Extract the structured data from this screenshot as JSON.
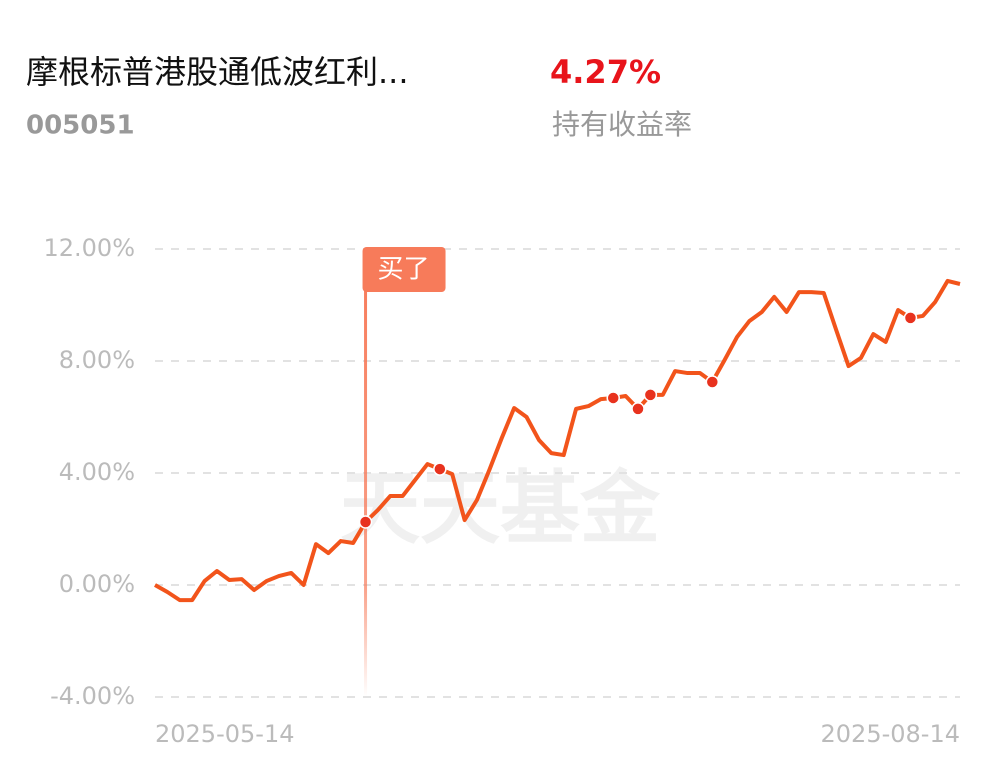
{
  "header": {
    "title": "摩根标普港股通低波红利...",
    "code": "005051",
    "return_value": "4.27%",
    "return_label": "持有收益率"
  },
  "watermark": "天天基金",
  "chart_data": {
    "type": "line",
    "categories": [
      "2025-05-14",
      null,
      null,
      null,
      null,
      null,
      null,
      null,
      null,
      null,
      null,
      null,
      null,
      null,
      null,
      null,
      null,
      null,
      null,
      null,
      null,
      null,
      null,
      null,
      null,
      null,
      null,
      null,
      null,
      null,
      null,
      null,
      null,
      null,
      null,
      null,
      null,
      null,
      null,
      null,
      null,
      null,
      null,
      null,
      null,
      null,
      null,
      null,
      null,
      null,
      null,
      null,
      null,
      null,
      null,
      null,
      null,
      null,
      null,
      null,
      null,
      null,
      null,
      null,
      null,
      "2025-08-14"
    ],
    "series": [
      {
        "name": null,
        "color": "#f2541b",
        "values": [
          0,
          -0.25,
          -0.54,
          -0.54,
          0.14,
          0.5,
          0.18,
          0.21,
          -0.18,
          0.14,
          0.32,
          0.43,
          0,
          1.46,
          1.14,
          1.57,
          1.5,
          2.25,
          2.68,
          3.18,
          3.18,
          3.75,
          4.32,
          4.14,
          3.96,
          2.32,
          3.04,
          4.11,
          5.25,
          6.32,
          6.0,
          5.18,
          4.71,
          4.64,
          6.29,
          6.39,
          6.64,
          6.68,
          6.75,
          6.29,
          6.79,
          6.79,
          7.64,
          7.57,
          7.57,
          7.25,
          8.04,
          8.86,
          9.43,
          9.75,
          10.29,
          9.75,
          10.46,
          10.46,
          10.43,
          9.11,
          7.82,
          8.11,
          8.96,
          8.68,
          9.82,
          9.54,
          9.61,
          10.11,
          10.86,
          10.75
        ]
      }
    ],
    "dots": [
      17,
      23,
      37,
      39,
      40,
      45,
      61
    ],
    "annotation": {
      "label": "买了",
      "at": 17
    },
    "ylim": [
      -4,
      12
    ],
    "yticks": [
      {
        "value": -4,
        "label": "-4.00%"
      },
      {
        "value": 0,
        "label": "0.00%"
      },
      {
        "value": 4,
        "label": "4.00%"
      },
      {
        "value": 8,
        "label": "8.00%"
      },
      {
        "value": 12,
        "label": "12.00%"
      }
    ],
    "grid": true
  }
}
